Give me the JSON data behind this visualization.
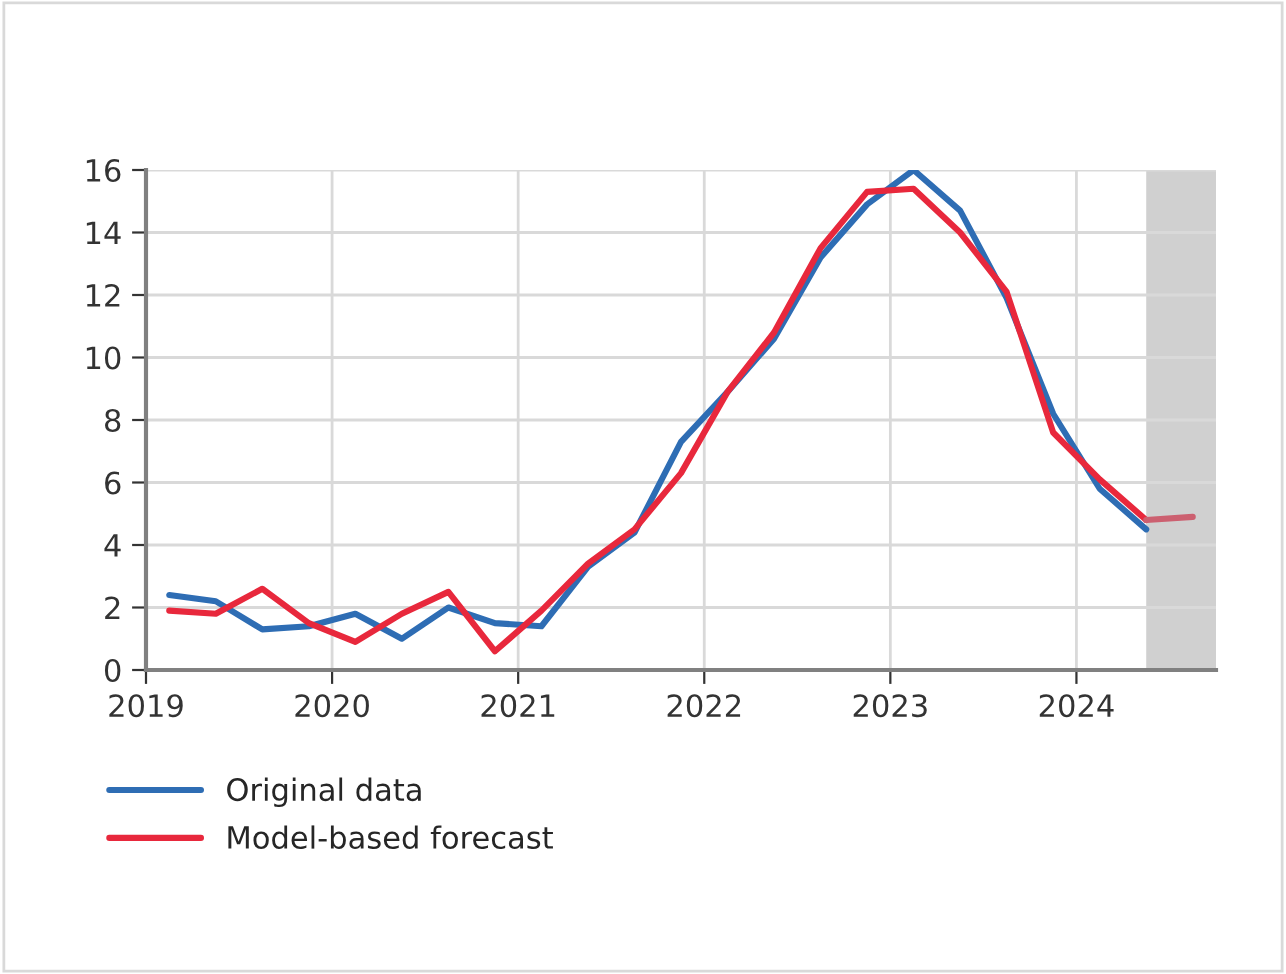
{
  "chart_data": {
    "type": "line",
    "xlim": [
      2019,
      2024.75
    ],
    "xticks": [
      2019,
      2020,
      2021,
      2022,
      2023,
      2024
    ],
    "ylim": [
      0,
      16
    ],
    "yticks": [
      0,
      2,
      4,
      6,
      8,
      10,
      12,
      14,
      16
    ],
    "grid": true,
    "legend": "bottom",
    "marker": "none",
    "line_style": "solid",
    "bands": [
      {
        "axis": "x",
        "from": 2024.375,
        "to": 2024.75,
        "color": "#d0d0d0"
      }
    ],
    "series": [
      {
        "name": "Original data",
        "color": "#2e6db4",
        "x": [
          2019.125,
          2019.375,
          2019.625,
          2019.875,
          2020.125,
          2020.375,
          2020.625,
          2020.875,
          2021.125,
          2021.375,
          2021.625,
          2021.875,
          2022.125,
          2022.375,
          2022.625,
          2022.875,
          2023.125,
          2023.375,
          2023.625,
          2023.875,
          2024.125,
          2024.375
        ],
        "values": [
          2.4,
          2.2,
          1.3,
          1.4,
          1.8,
          1.0,
          2.0,
          1.5,
          1.4,
          3.3,
          4.4,
          7.3,
          8.9,
          10.6,
          13.2,
          14.9,
          16.0,
          14.7,
          11.9,
          8.2,
          5.8,
          4.5
        ]
      },
      {
        "name": "Model-based forecast",
        "color": "#e8283c",
        "x": [
          2019.125,
          2019.375,
          2019.625,
          2019.875,
          2020.125,
          2020.375,
          2020.625,
          2020.875,
          2021.125,
          2021.375,
          2021.625,
          2021.875,
          2022.125,
          2022.375,
          2022.625,
          2022.875,
          2023.125,
          2023.375,
          2023.625,
          2023.875,
          2024.125,
          2024.375
        ],
        "values": [
          1.9,
          1.8,
          2.6,
          1.5,
          0.9,
          1.8,
          2.5,
          0.6,
          1.9,
          3.4,
          4.5,
          6.3,
          8.9,
          10.8,
          13.5,
          15.3,
          15.4,
          14.0,
          12.1,
          7.6,
          6.1,
          4.8
        ]
      },
      {
        "color": "#cc6070",
        "x": [
          2024.375,
          2024.625
        ],
        "values": [
          4.8,
          4.9
        ]
      }
    ]
  }
}
